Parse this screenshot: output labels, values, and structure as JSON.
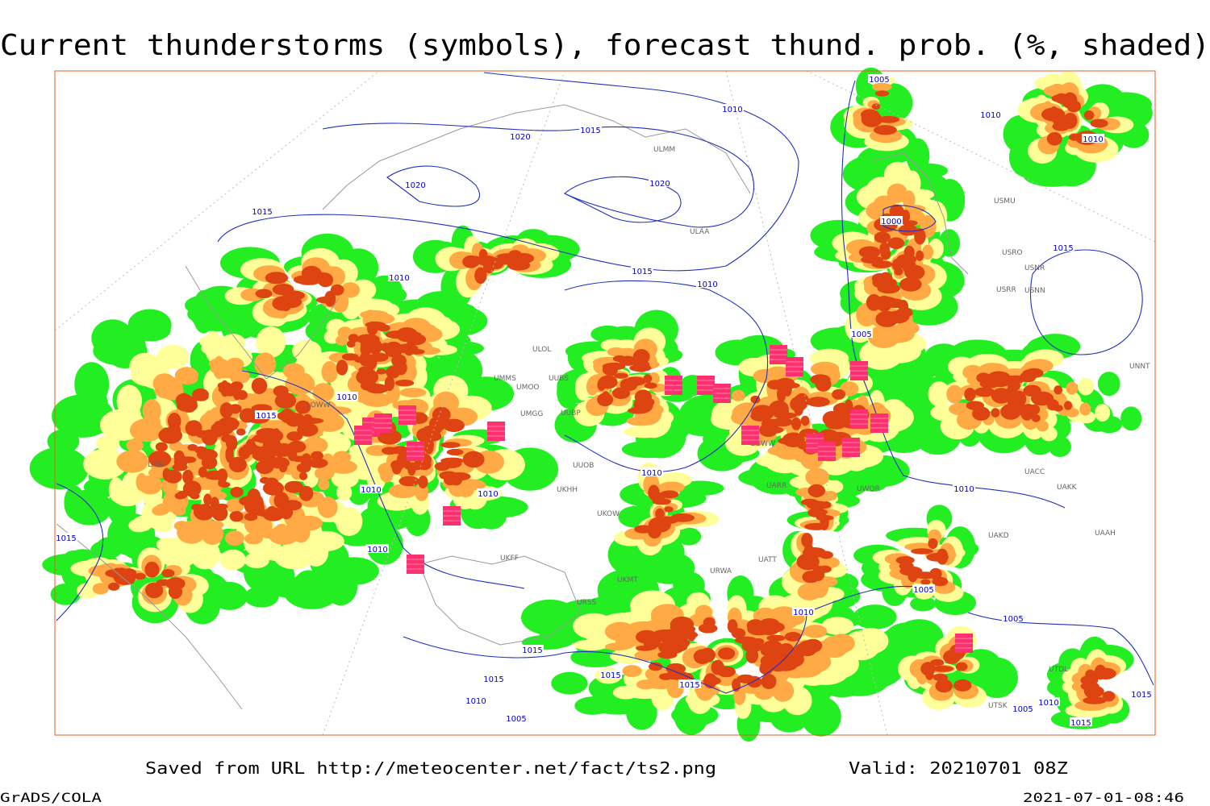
{
  "title": "Current thunderstorms (symbols), forecast thund. prob. (%, shaded)",
  "footer": {
    "source": "Saved from URL http://meteocenter.net/fact/ts2.png",
    "valid": "Valid: 20210701 08Z",
    "software": "GrADS/COLA",
    "timestamp": "2021-07-01-08:46"
  },
  "isobar_labels": [
    1005,
    1010,
    1015,
    1020,
    1020,
    1020,
    1015,
    1015,
    1010,
    1010,
    1000,
    1005,
    1010,
    1010,
    1015,
    1010,
    1015,
    1010,
    1010,
    1010,
    1010,
    1010,
    1015,
    1005,
    1005,
    1010,
    1015,
    1015,
    1015,
    1015,
    1010,
    1005,
    1005,
    1010,
    1015,
    1015
  ],
  "stations": [
    "ULOL",
    "UMMS",
    "UMOO",
    "UUBS",
    "UMGG",
    "UUBP",
    "UUOB",
    "UKHH",
    "UKOW",
    "UUWW",
    "UARR",
    "UACC",
    "UAKK",
    "UAKD",
    "UAAH",
    "UNNT",
    "USRR",
    "USNR",
    "USNN",
    "USRO",
    "USMU",
    "ULAA",
    "ULMM",
    "UWOR",
    "UATT",
    "URWA",
    "UKFF",
    "URSS",
    "UKMT",
    "UTDL",
    "UTSK",
    "LIRA",
    "LOWW"
  ]
}
